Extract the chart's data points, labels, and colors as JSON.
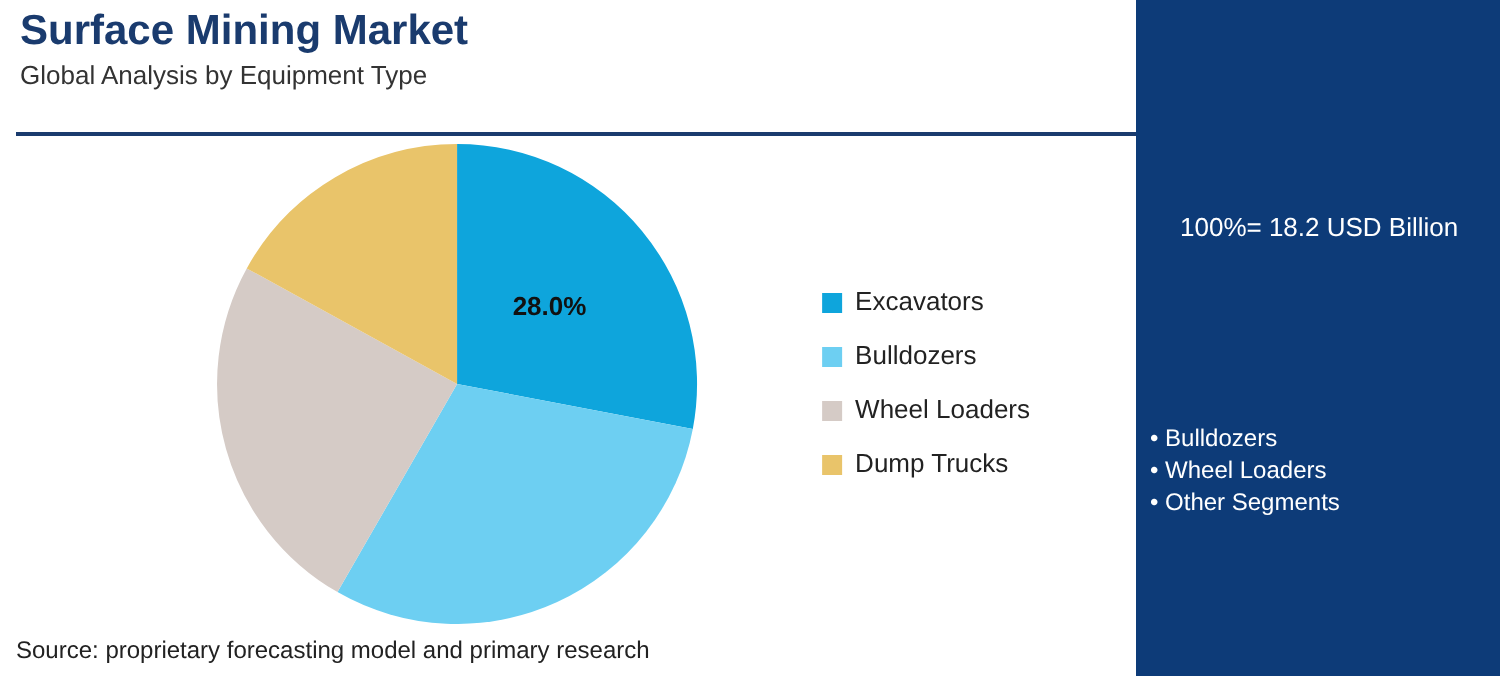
{
  "chart_data": {
    "type": "pie",
    "title": "Surface Mining Market",
    "subtitle": "Global Analysis by Equipment Type",
    "categories": [
      "Excavators",
      "Bulldozers",
      "Wheel Loaders",
      "Dump Trucks"
    ],
    "values": [
      28.0,
      30.3,
      24.7,
      17.0
    ],
    "colors": [
      "#0ea5dc",
      "#6dcff2",
      "#d5cbc6",
      "#e9c46a"
    ],
    "value_labels": [
      "28.0%",
      null,
      null,
      null
    ],
    "legend": "right",
    "annotations": [
      "100%= 18.2 USD Billion",
      "• Bulldozers",
      "• Wheel Loaders",
      "• Other Segments",
      "Source: proprietary forecasting model and primary research"
    ]
  }
}
